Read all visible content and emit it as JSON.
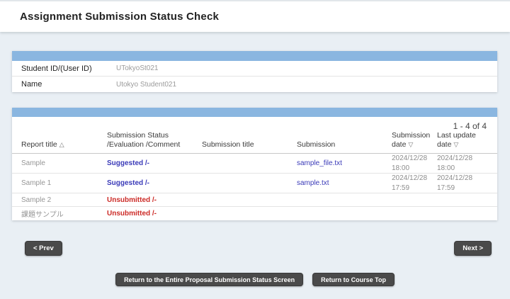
{
  "page": {
    "title": "Assignment Submission Status Check"
  },
  "student_info": {
    "rows": [
      {
        "label": "Student ID/(User ID)",
        "value": "UTokyoSt021"
      },
      {
        "label": "Name",
        "value": "Utokyo Student021"
      }
    ]
  },
  "results": {
    "pagination": "1 - 4 of 4",
    "columns": {
      "report_title": "Report title",
      "report_title_sort": "△",
      "status": "Submission Status /Evaluation /Comment",
      "submission_title": "Submission title",
      "submission": "Submission",
      "submission_date": "Submission date",
      "submission_date_sort": "▽",
      "last_update_date": "Last update date",
      "last_update_date_sort": "▽"
    },
    "rows": [
      {
        "report_title": "Sample",
        "status": "Suggested /-",
        "status_type": "suggested",
        "submission_title": "",
        "submission_file": "sample_file.txt",
        "submission_date": "2024/12/28 18:00",
        "last_update_date": "2024/12/28 18:00"
      },
      {
        "report_title": "Sample 1",
        "status": "Suggested /-",
        "status_type": "suggested",
        "submission_title": "",
        "submission_file": "sample.txt",
        "submission_date": "2024/12/28 17:59",
        "last_update_date": "2024/12/28 17:59"
      },
      {
        "report_title": "Sample 2",
        "status": "Unsubmitted /-",
        "status_type": "unsubmitted",
        "submission_title": "",
        "submission_file": "",
        "submission_date": "",
        "last_update_date": ""
      },
      {
        "report_title": "課題サンプル",
        "status": "Unsubmitted /-",
        "status_type": "unsubmitted",
        "submission_title": "",
        "submission_file": "",
        "submission_date": "",
        "last_update_date": ""
      }
    ]
  },
  "buttons": {
    "prev": "< Prev",
    "next": "Next >",
    "return_entire": "Return to the Entire Proposal Submission Status Screen",
    "return_course_top": "Return to Course Top"
  },
  "colors": {
    "header_bar_blue": "#8ab6e0",
    "status_suggested": "#3a3ab8",
    "status_unsubmitted": "#cc2b27",
    "link": "#3a3ab8",
    "button_dark": "#4a4a4a",
    "page_background": "#e9eff4"
  }
}
